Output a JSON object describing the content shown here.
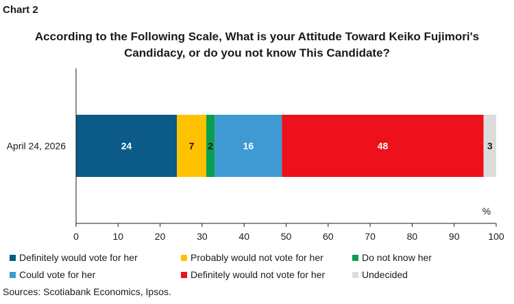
{
  "header": {
    "chart_label": "Chart 2",
    "title_line1": "According to the Following Scale, What is your Attitude Toward Keiko Fujimori's",
    "title_line2": "Candidacy, or do you not know This Candidate?"
  },
  "chart_data": {
    "type": "bar",
    "orientation": "horizontal",
    "stacked": true,
    "categories": [
      "April 24, 2026"
    ],
    "series": [
      {
        "name": "Definitely would vote for her",
        "values": [
          24
        ],
        "color": "#0b5a87",
        "label_color": "#ffffff"
      },
      {
        "name": "Probably would not vote for her",
        "values": [
          7
        ],
        "color": "#fec200",
        "label_color": "#1a1a1a"
      },
      {
        "name": "Do not know her",
        "values": [
          2
        ],
        "color": "#0a9e50",
        "label_color": "#1a1a1a"
      },
      {
        "name": "Could vote for her",
        "values": [
          16
        ],
        "color": "#3f9ad3",
        "label_color": "#ffffff"
      },
      {
        "name": "Definitely would not vote for her",
        "values": [
          48
        ],
        "color": "#ec111a",
        "label_color": "#ffffff"
      },
      {
        "name": "Undecided",
        "values": [
          3
        ],
        "color": "#dcdcdc",
        "label_color": "#1a1a1a"
      }
    ],
    "xlim": [
      0,
      100
    ],
    "xticks": [
      0,
      10,
      20,
      30,
      40,
      50,
      60,
      70,
      80,
      90,
      100
    ],
    "unit_label": "%",
    "grid": false,
    "legend_position": "bottom"
  },
  "footer": {
    "source": "Sources: Scotiabank Economics, Ipsos."
  }
}
